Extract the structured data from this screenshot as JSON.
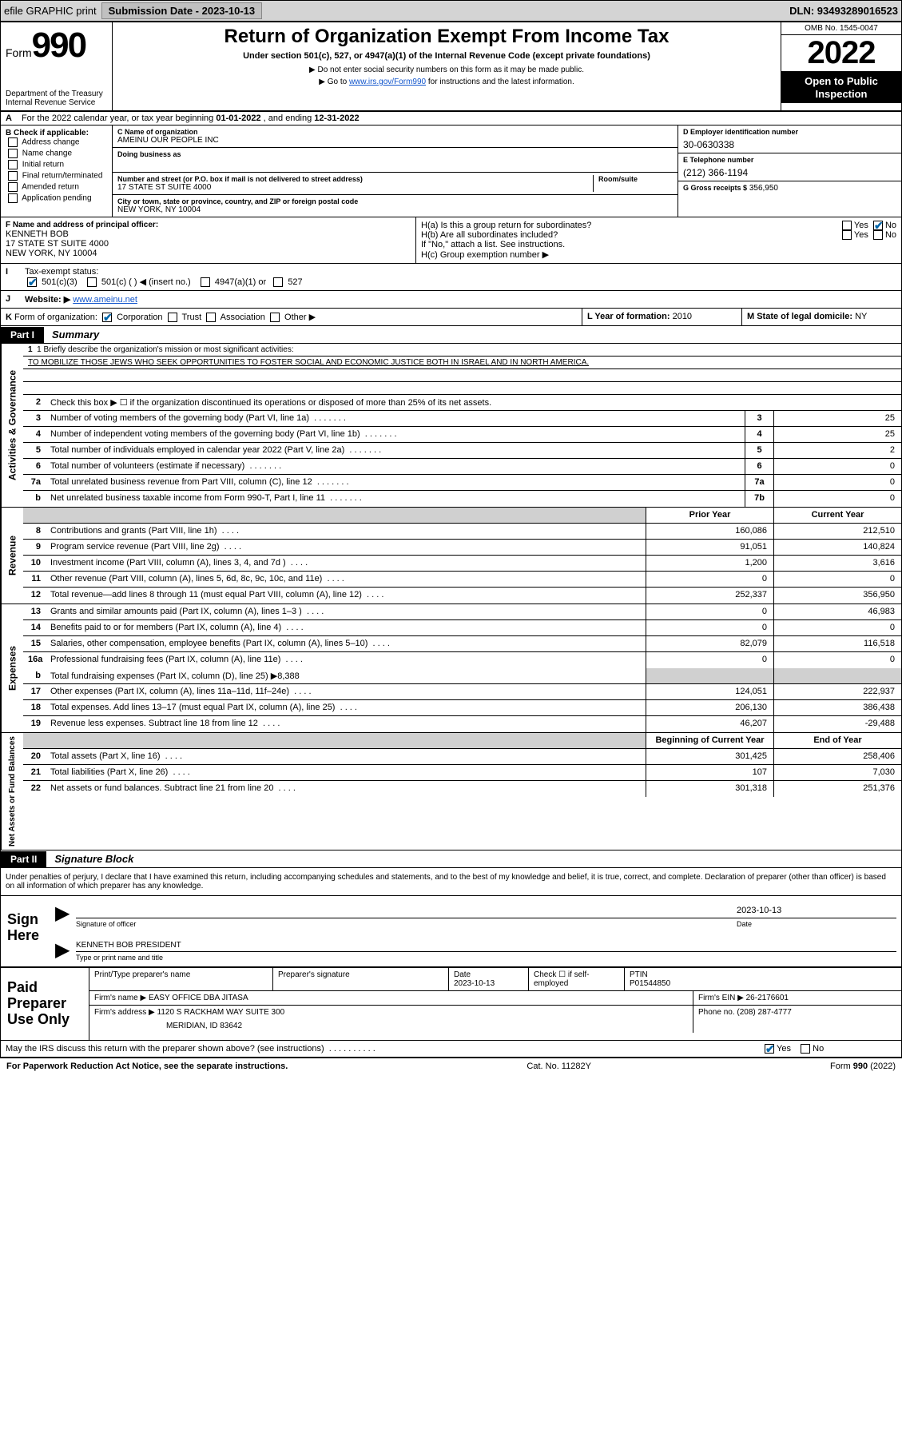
{
  "topbar": {
    "efile_label": "efile GRAPHIC print",
    "submission_label": "Submission Date - 2023-10-13",
    "dln_label": "DLN: 93493289016523"
  },
  "header": {
    "form_prefix": "Form",
    "form_number": "990",
    "dept": "Department of the Treasury",
    "irs": "Internal Revenue Service",
    "title": "Return of Organization Exempt From Income Tax",
    "subtitle": "Under section 501(c), 527, or 4947(a)(1) of the Internal Revenue Code (except private foundations)",
    "note1": "▶ Do not enter social security numbers on this form as it may be made public.",
    "note2_pre": "▶ Go to ",
    "note2_link": "www.irs.gov/Form990",
    "note2_post": " for instructions and the latest information.",
    "omb": "OMB No. 1545-0047",
    "year": "2022",
    "inspection": "Open to Public Inspection"
  },
  "rowA": {
    "label": "A",
    "text_pre": "For the 2022 calendar year, or tax year beginning ",
    "begin": "01-01-2022",
    "mid": " , and ending ",
    "end": "12-31-2022"
  },
  "colB": {
    "label": "B Check if applicable:",
    "items": [
      "Address change",
      "Name change",
      "Initial return",
      "Final return/terminated",
      "Amended return",
      "Application pending"
    ]
  },
  "colC": {
    "name_label": "C Name of organization",
    "name": "AMEINU OUR PEOPLE INC",
    "dba_label": "Doing business as",
    "street_label": "Number and street (or P.O. box if mail is not delivered to street address)",
    "room_label": "Room/suite",
    "street": "17 STATE ST SUITE 4000",
    "city_label": "City or town, state or province, country, and ZIP or foreign postal code",
    "city": "NEW YORK, NY  10004"
  },
  "colD": {
    "label": "D Employer identification number",
    "value": "30-0630338"
  },
  "colE": {
    "label": "E Telephone number",
    "value": "(212) 366-1194"
  },
  "colG": {
    "label": "G Gross receipts $",
    "value": "356,950"
  },
  "colF": {
    "label": "F Name and address of principal officer:",
    "name": "KENNETH BOB",
    "addr1": "17 STATE ST SUITE 4000",
    "addr2": "NEW YORK, NY  10004"
  },
  "colH": {
    "a_label": "H(a)  Is this a group return for subordinates?",
    "yes": "Yes",
    "no": "No",
    "b_label": "H(b)  Are all subordinates included?",
    "b_note": "If \"No,\" attach a list. See instructions.",
    "c_label": "H(c)  Group exemption number ▶"
  },
  "rowI": {
    "label": "I",
    "title": "Tax-exempt status:",
    "opt1": "501(c)(3)",
    "opt2": "501(c) (    ) ◀ (insert no.)",
    "opt3": "4947(a)(1) or",
    "opt4": "527"
  },
  "rowJ": {
    "label": "J",
    "title": "Website: ▶",
    "value": "www.ameinu.net"
  },
  "rowK": {
    "label": "K",
    "title": "Form of organization:",
    "opts": [
      "Corporation",
      "Trust",
      "Association",
      "Other ▶"
    ]
  },
  "rowL": {
    "label": "L Year of formation:",
    "value": "2010"
  },
  "rowM": {
    "label": "M State of legal domicile:",
    "value": "NY"
  },
  "parts": {
    "p1_tag": "Part I",
    "p1_title": "Summary",
    "p2_tag": "Part II",
    "p2_title": "Signature Block"
  },
  "summary": {
    "governance_label": "Activities & Governance",
    "revenue_label": "Revenue",
    "expenses_label": "Expenses",
    "netassets_label": "Net Assets or Fund Balances",
    "line1_label": "1   Briefly describe the organization's mission or most significant activities:",
    "mission": "TO MOBILIZE THOSE JEWS WHO SEEK OPPORTUNITIES TO FOSTER SOCIAL AND ECONOMIC JUSTICE BOTH IN ISRAEL AND IN NORTH AMERICA.",
    "line2": "Check this box ▶ ☐  if the organization discontinued its operations or disposed of more than 25% of its net assets.",
    "rows_gov": [
      {
        "n": "3",
        "d": "Number of voting members of the governing body (Part VI, line 1a)",
        "ref": "3",
        "v": "25"
      },
      {
        "n": "4",
        "d": "Number of independent voting members of the governing body (Part VI, line 1b)",
        "ref": "4",
        "v": "25"
      },
      {
        "n": "5",
        "d": "Total number of individuals employed in calendar year 2022 (Part V, line 2a)",
        "ref": "5",
        "v": "2"
      },
      {
        "n": "6",
        "d": "Total number of volunteers (estimate if necessary)",
        "ref": "6",
        "v": "0"
      },
      {
        "n": "7a",
        "d": "Total unrelated business revenue from Part VIII, column (C), line 12",
        "ref": "7a",
        "v": "0"
      },
      {
        "n": "b",
        "d": "Net unrelated business taxable income from Form 990-T, Part I, line 11",
        "ref": "7b",
        "v": "0"
      }
    ],
    "head_prior": "Prior Year",
    "head_current": "Current Year",
    "rows_rev": [
      {
        "n": "8",
        "d": "Contributions and grants (Part VIII, line 1h)",
        "p": "160,086",
        "c": "212,510"
      },
      {
        "n": "9",
        "d": "Program service revenue (Part VIII, line 2g)",
        "p": "91,051",
        "c": "140,824"
      },
      {
        "n": "10",
        "d": "Investment income (Part VIII, column (A), lines 3, 4, and 7d )",
        "p": "1,200",
        "c": "3,616"
      },
      {
        "n": "11",
        "d": "Other revenue (Part VIII, column (A), lines 5, 6d, 8c, 9c, 10c, and 11e)",
        "p": "0",
        "c": "0"
      },
      {
        "n": "12",
        "d": "Total revenue—add lines 8 through 11 (must equal Part VIII, column (A), line 12)",
        "p": "252,337",
        "c": "356,950"
      }
    ],
    "rows_exp": [
      {
        "n": "13",
        "d": "Grants and similar amounts paid (Part IX, column (A), lines 1–3 )",
        "p": "0",
        "c": "46,983"
      },
      {
        "n": "14",
        "d": "Benefits paid to or for members (Part IX, column (A), line 4)",
        "p": "0",
        "c": "0"
      },
      {
        "n": "15",
        "d": "Salaries, other compensation, employee benefits (Part IX, column (A), lines 5–10)",
        "p": "82,079",
        "c": "116,518"
      },
      {
        "n": "16a",
        "d": "Professional fundraising fees (Part IX, column (A), line 11e)",
        "p": "0",
        "c": "0"
      }
    ],
    "row16b": {
      "n": "b",
      "d": "Total fundraising expenses (Part IX, column (D), line 25) ▶8,388"
    },
    "rows_exp2": [
      {
        "n": "17",
        "d": "Other expenses (Part IX, column (A), lines 11a–11d, 11f–24e)",
        "p": "124,051",
        "c": "222,937"
      },
      {
        "n": "18",
        "d": "Total expenses. Add lines 13–17 (must equal Part IX, column (A), line 25)",
        "p": "206,130",
        "c": "386,438"
      },
      {
        "n": "19",
        "d": "Revenue less expenses. Subtract line 18 from line 12",
        "p": "46,207",
        "c": "-29,488"
      }
    ],
    "head_begin": "Beginning of Current Year",
    "head_end": "End of Year",
    "rows_net": [
      {
        "n": "20",
        "d": "Total assets (Part X, line 16)",
        "p": "301,425",
        "c": "258,406"
      },
      {
        "n": "21",
        "d": "Total liabilities (Part X, line 26)",
        "p": "107",
        "c": "7,030"
      },
      {
        "n": "22",
        "d": "Net assets or fund balances. Subtract line 21 from line 20",
        "p": "301,318",
        "c": "251,376"
      }
    ]
  },
  "sig": {
    "declaration": "Under penalties of perjury, I declare that I have examined this return, including accompanying schedules and statements, and to the best of my knowledge and belief, it is true, correct, and complete. Declaration of preparer (other than officer) is based on all information of which preparer has any knowledge.",
    "sign_here": "Sign Here",
    "sig_of_officer": "Signature of officer",
    "date_label": "Date",
    "date_val": "2023-10-13",
    "name_title": "KENNETH BOB PRESIDENT",
    "name_title_label": "Type or print name and title"
  },
  "paid": {
    "label": "Paid Preparer Use Only",
    "h_prep_name": "Print/Type preparer's name",
    "h_prep_sig": "Preparer's signature",
    "h_date": "Date",
    "date_val": "2023-10-13",
    "h_check": "Check ☐ if self-employed",
    "h_ptin": "PTIN",
    "ptin": "P01544850",
    "firm_name_label": "Firm's name    ▶",
    "firm_name": "EASY OFFICE DBA JITASA",
    "firm_ein_label": "Firm's EIN ▶",
    "firm_ein": "26-2176601",
    "firm_addr_label": "Firm's address ▶",
    "firm_addr1": "1120 S RACKHAM WAY SUITE 300",
    "firm_addr2": "MERIDIAN, ID  83642",
    "phone_label": "Phone no.",
    "phone": "(208) 287-4777"
  },
  "footer": {
    "discuss": "May the IRS discuss this return with the preparer shown above? (see instructions)",
    "yes": "Yes",
    "no": "No",
    "paperwork": "For Paperwork Reduction Act Notice, see the separate instructions.",
    "cat": "Cat. No. 11282Y",
    "form": "Form 990 (2022)"
  },
  "colors": {
    "grey_bg": "#d4d4d4",
    "grey_btn": "#c0c0c0",
    "link": "#1155cc",
    "check_blue": "#0066aa",
    "shade": "#d0d0d0"
  }
}
